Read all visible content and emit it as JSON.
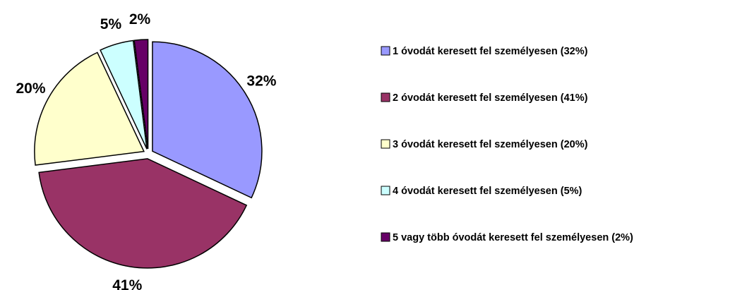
{
  "chart_data": {
    "type": "pie",
    "categories": [
      "1 óvodát keresett fel személyesen (32%)",
      "2 óvodát keresett fel személyesen (41%)",
      "3 óvodát keresett fel személyesen (20%)",
      "4 óvodát keresett fel személyesen (5%)",
      "5 vagy több óvodát keresett fel személyesen (2%)"
    ],
    "values": [
      32,
      41,
      20,
      5,
      2
    ],
    "value_labels": [
      "32%",
      "41%",
      "20%",
      "5%",
      "2%"
    ],
    "colors": [
      "#9999ff",
      "#993366",
      "#ffffcc",
      "#ccffff",
      "#660066"
    ],
    "legend": "right"
  }
}
